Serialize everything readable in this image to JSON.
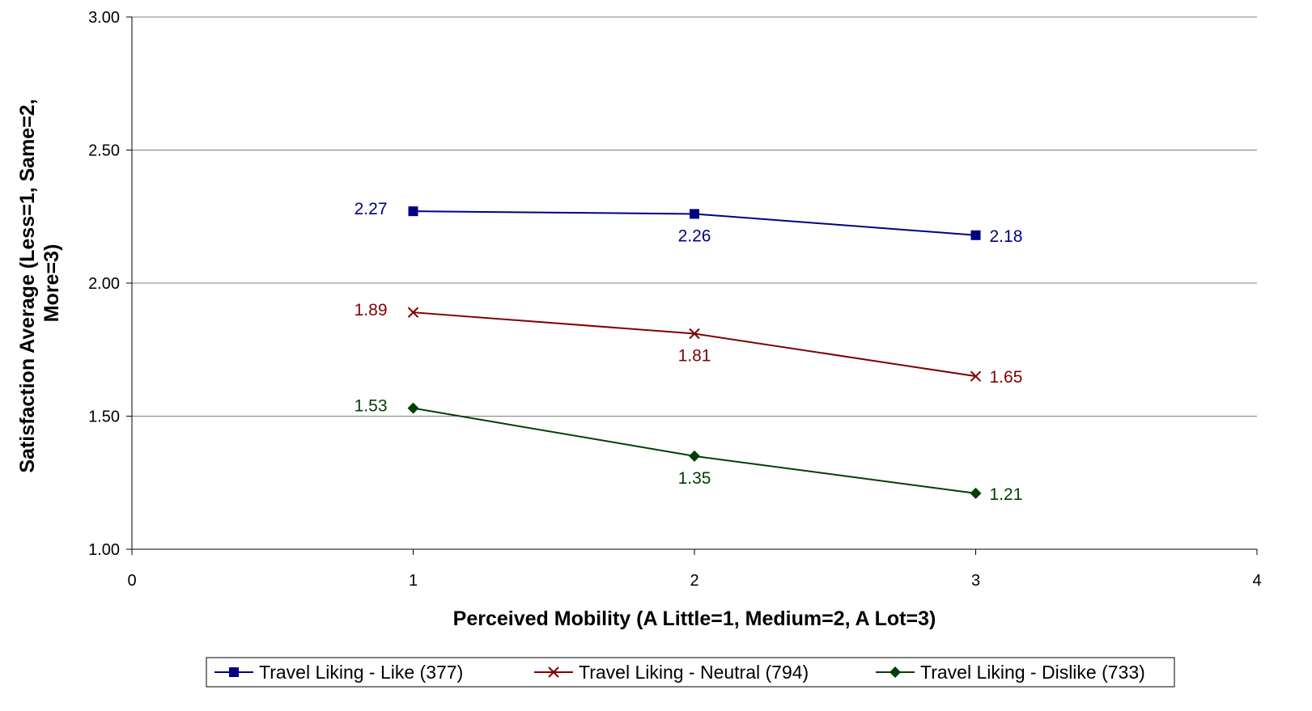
{
  "chart_data": {
    "type": "line",
    "title": "",
    "xlabel": "Perceived Mobility (A Little=1, Medium=2, A Lot=3)",
    "ylabel_lines": [
      "Satisfaction Average (Less=1, Same=2,",
      "More=3)"
    ],
    "xlim": [
      0,
      4
    ],
    "ylim": [
      1.0,
      3.0
    ],
    "x_ticks": [
      "0",
      "1",
      "2",
      "3",
      "4"
    ],
    "y_ticks": [
      "1.00",
      "1.50",
      "2.00",
      "2.50",
      "3.00"
    ],
    "grid": "horizontal",
    "legend_position": "bottom",
    "series": [
      {
        "name": "Travel Liking - Like (377)",
        "color": "#000080",
        "marker": "square",
        "x": [
          1,
          2,
          3
        ],
        "y": [
          2.27,
          2.26,
          2.18
        ],
        "labels": [
          "2.27",
          "2.26",
          "2.18"
        ],
        "label_pos": [
          "left",
          "below",
          "right"
        ]
      },
      {
        "name": "Travel Liking - Neutral (794)",
        "color": "#800000",
        "marker": "x",
        "x": [
          1,
          2,
          3
        ],
        "y": [
          1.89,
          1.81,
          1.65
        ],
        "labels": [
          "1.89",
          "1.81",
          "1.65"
        ],
        "label_pos": [
          "left",
          "below",
          "right"
        ]
      },
      {
        "name": "Travel Liking - Dislike (733)",
        "color": "#004000",
        "marker": "diamond",
        "x": [
          1,
          2,
          3
        ],
        "y": [
          1.53,
          1.35,
          1.21
        ],
        "labels": [
          "1.53",
          "1.35",
          "1.21"
        ],
        "label_pos": [
          "left",
          "below",
          "right"
        ]
      }
    ]
  }
}
